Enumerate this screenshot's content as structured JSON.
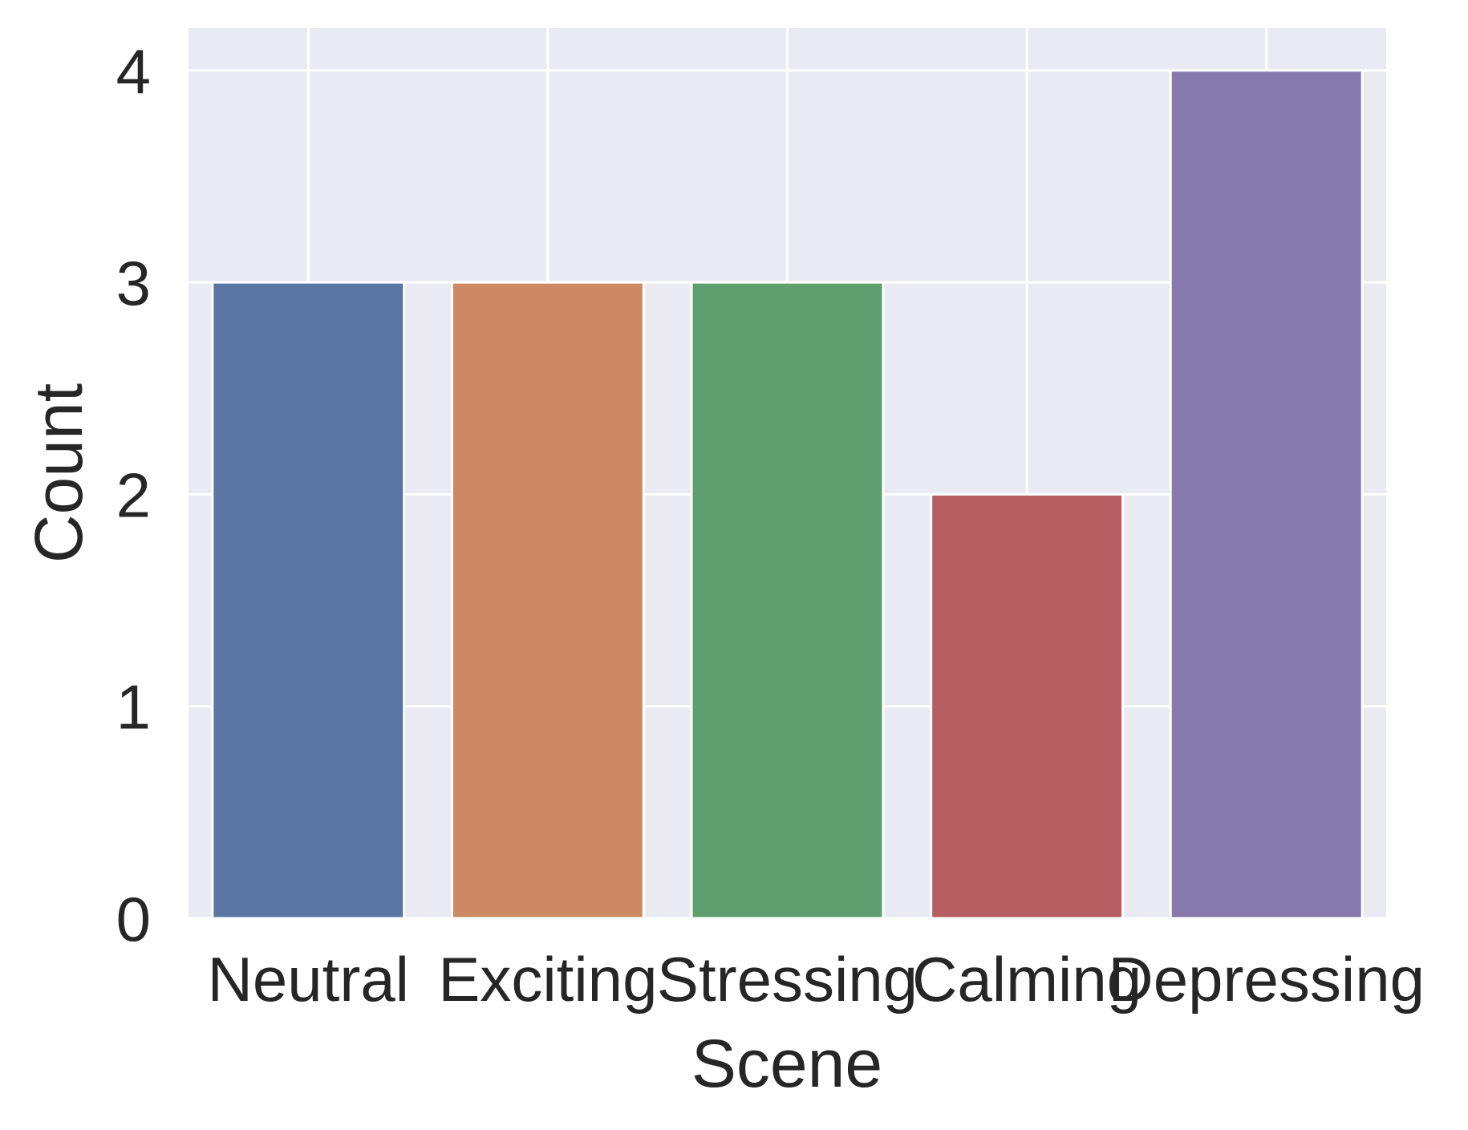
{
  "chart_data": {
    "type": "bar",
    "title": "",
    "xlabel": "Scene",
    "ylabel": "Count",
    "categories": [
      "Neutral",
      "Exciting",
      "Stressing",
      "Calming",
      "Depressing"
    ],
    "values": [
      3,
      3,
      3,
      2,
      4
    ],
    "colors": [
      "#5875a4",
      "#cc8963",
      "#5f9e6e",
      "#b55d60",
      "#857aab"
    ],
    "ylim": [
      0,
      4.2
    ],
    "yticks": [
      0,
      1,
      2,
      3,
      4
    ],
    "grid": true,
    "background": "#eaeaf2",
    "grid_color": "#ffffff",
    "legend": "none"
  }
}
